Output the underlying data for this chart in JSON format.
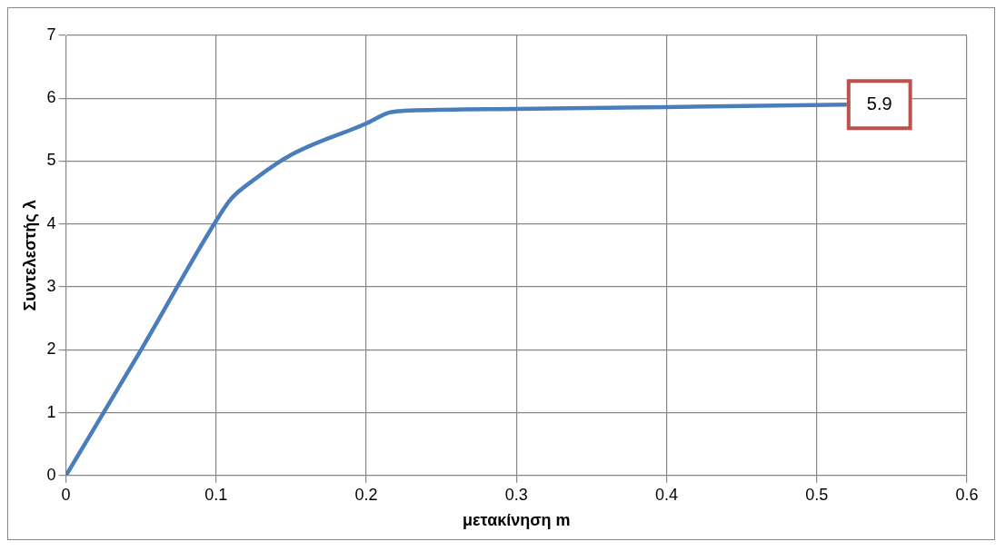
{
  "chart_data": {
    "type": "line",
    "xlabel": "μετακίνηση m",
    "ylabel": "Συντελεστής λ",
    "x": [
      0,
      0.05,
      0.1,
      0.11,
      0.125,
      0.15,
      0.2,
      0.215,
      0.225,
      0.3,
      0.4,
      0.52
    ],
    "series": [
      {
        "color": "#4a7ebb",
        "values": [
          0,
          2.0,
          4.05,
          4.4,
          4.7,
          5.1,
          5.6,
          5.77,
          5.8,
          5.83,
          5.86,
          5.9
        ]
      }
    ],
    "xlim": [
      0,
      0.6
    ],
    "xticks": [
      0,
      0.1,
      0.2,
      0.3,
      0.4,
      0.5,
      0.6
    ],
    "ylim": [
      0,
      7
    ],
    "yticks": [
      0,
      1,
      2,
      3,
      4,
      5,
      6,
      7
    ],
    "grid": true,
    "legend": false,
    "marker": "none",
    "line_style": "solid",
    "annotations": [
      {
        "text": "5.9",
        "x": 0.52,
        "y": 5.9
      }
    ]
  }
}
